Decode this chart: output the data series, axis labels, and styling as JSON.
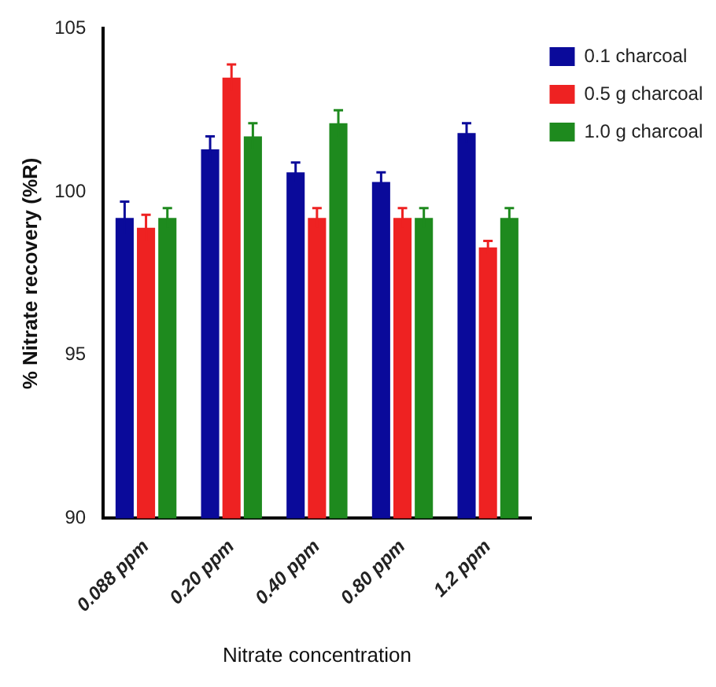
{
  "chart_data": {
    "type": "bar",
    "xlabel": "Nitrate concentration",
    "ylabel": "% Nitrate recovery (%R)",
    "categories": [
      "0.088 ppm",
      "0.20 ppm",
      "0.40 ppm",
      "0.80 ppm",
      "1.2 ppm"
    ],
    "series": [
      {
        "name": "0.1 charcoal",
        "color": "#0a0a9a",
        "values": [
          99.2,
          101.3,
          100.6,
          100.3,
          101.8
        ],
        "errors": [
          0.5,
          0.4,
          0.3,
          0.3,
          0.3
        ]
      },
      {
        "name": "0.5 g charcoal",
        "color": "#ee2222",
        "values": [
          98.9,
          103.5,
          99.2,
          99.2,
          98.3
        ],
        "errors": [
          0.4,
          0.4,
          0.3,
          0.3,
          0.2
        ]
      },
      {
        "name": "1.0 g charcoal",
        "color": "#1e8a1e",
        "values": [
          99.2,
          101.7,
          102.1,
          99.2,
          99.2
        ],
        "errors": [
          0.3,
          0.4,
          0.4,
          0.3,
          0.3
        ]
      }
    ],
    "ylim": [
      90,
      105
    ],
    "yticks": [
      90,
      95,
      100,
      105
    ],
    "grid": false,
    "legend": "top right"
  }
}
